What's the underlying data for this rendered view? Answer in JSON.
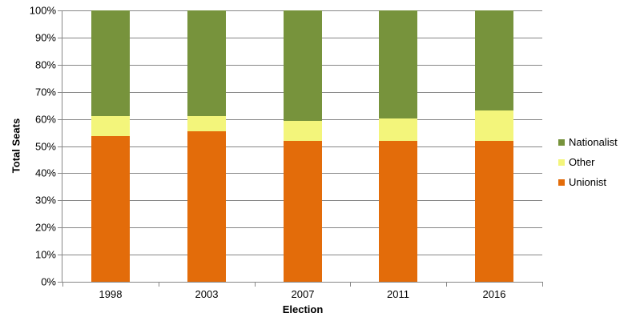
{
  "chart_data": {
    "type": "bar",
    "stacked": true,
    "percent_stacked": true,
    "title": "",
    "xlabel": "Election",
    "ylabel": "Total Seats",
    "categories": [
      "1998",
      "2003",
      "2007",
      "2011",
      "2016"
    ],
    "series": [
      {
        "name": "Unionist",
        "color": "#E36C0A",
        "values": [
          53.7,
          55.6,
          51.9,
          51.9,
          51.9
        ]
      },
      {
        "name": "Other",
        "color": "#F3F57B",
        "values": [
          7.4,
          5.5,
          7.4,
          8.3,
          11.1
        ]
      },
      {
        "name": "Nationalist",
        "color": "#77933C",
        "values": [
          38.9,
          38.9,
          40.7,
          39.8,
          37.0
        ]
      }
    ],
    "y_ticks": [
      "0%",
      "10%",
      "20%",
      "30%",
      "40%",
      "50%",
      "60%",
      "70%",
      "80%",
      "90%",
      "100%"
    ],
    "ylim": [
      0,
      100
    ],
    "legend": [
      "Nationalist",
      "Other",
      "Unionist"
    ],
    "legend_position": "right",
    "grid": true,
    "grid_color": "#878787"
  }
}
